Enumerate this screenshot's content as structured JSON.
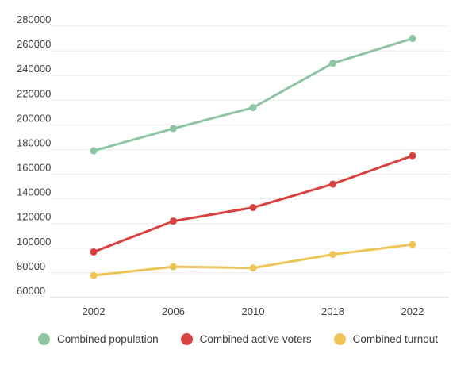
{
  "chart_data": {
    "type": "line",
    "title": "",
    "xlabel": "",
    "ylabel": "",
    "categories": [
      "2002",
      "2006",
      "2010",
      "2018",
      "2022"
    ],
    "series": [
      {
        "name": "Combined population",
        "color": "#8dc5a3",
        "values": [
          179000,
          197000,
          214000,
          250000,
          270000
        ]
      },
      {
        "name": "Combined active voters",
        "color": "#d8423e",
        "values": [
          97000,
          122000,
          133000,
          152000,
          175000
        ]
      },
      {
        "name": "Combined turnout",
        "color": "#eec455",
        "values": [
          78000,
          85000,
          84000,
          95000,
          103000
        ]
      }
    ],
    "y_axis": {
      "min": 60000,
      "max": 280000,
      "tick_step": 20000,
      "tick_labels": [
        "60000",
        "80000",
        "100000",
        "120000",
        "140000",
        "160000",
        "180000",
        "200000",
        "220000",
        "240000",
        "260000",
        "280000"
      ]
    },
    "grid": true,
    "legend_position": "bottom",
    "style": {
      "gridline_color": "#ebebeb",
      "baseline_color": "#d8d8d8",
      "text_color": "#404040",
      "background": "#ffffff"
    }
  }
}
